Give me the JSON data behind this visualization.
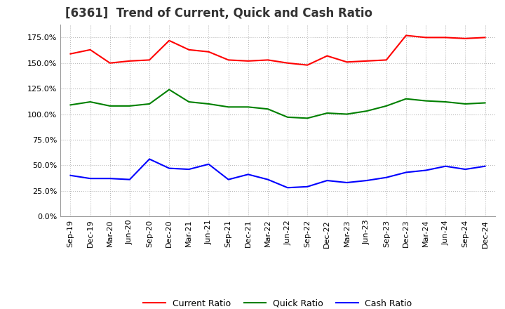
{
  "title": "[6361]  Trend of Current, Quick and Cash Ratio",
  "x_labels": [
    "Sep-19",
    "Dec-19",
    "Mar-20",
    "Jun-20",
    "Sep-20",
    "Dec-20",
    "Mar-21",
    "Jun-21",
    "Sep-21",
    "Dec-21",
    "Mar-22",
    "Jun-22",
    "Sep-22",
    "Dec-22",
    "Mar-23",
    "Jun-23",
    "Sep-23",
    "Dec-23",
    "Mar-24",
    "Jun-24",
    "Sep-24",
    "Dec-24"
  ],
  "current_ratio": [
    159,
    163,
    150,
    152,
    153,
    172,
    163,
    161,
    153,
    152,
    153,
    150,
    148,
    157,
    151,
    152,
    153,
    177,
    175,
    175,
    174,
    175
  ],
  "quick_ratio": [
    109,
    112,
    108,
    108,
    110,
    124,
    112,
    110,
    107,
    107,
    105,
    97,
    96,
    101,
    100,
    103,
    108,
    115,
    113,
    112,
    110,
    111
  ],
  "cash_ratio": [
    40,
    37,
    37,
    36,
    56,
    47,
    46,
    51,
    36,
    41,
    36,
    28,
    29,
    35,
    33,
    35,
    38,
    43,
    45,
    49,
    46,
    49
  ],
  "ylim": [
    0,
    187.5
  ],
  "yticks": [
    0,
    25,
    50,
    75,
    100,
    125,
    150,
    175
  ],
  "current_color": "#FF0000",
  "quick_color": "#008000",
  "cash_color": "#0000FF",
  "background_color": "#FFFFFF",
  "grid_color": "#BBBBBB",
  "title_fontsize": 12,
  "tick_fontsize": 8,
  "legend_fontsize": 9
}
